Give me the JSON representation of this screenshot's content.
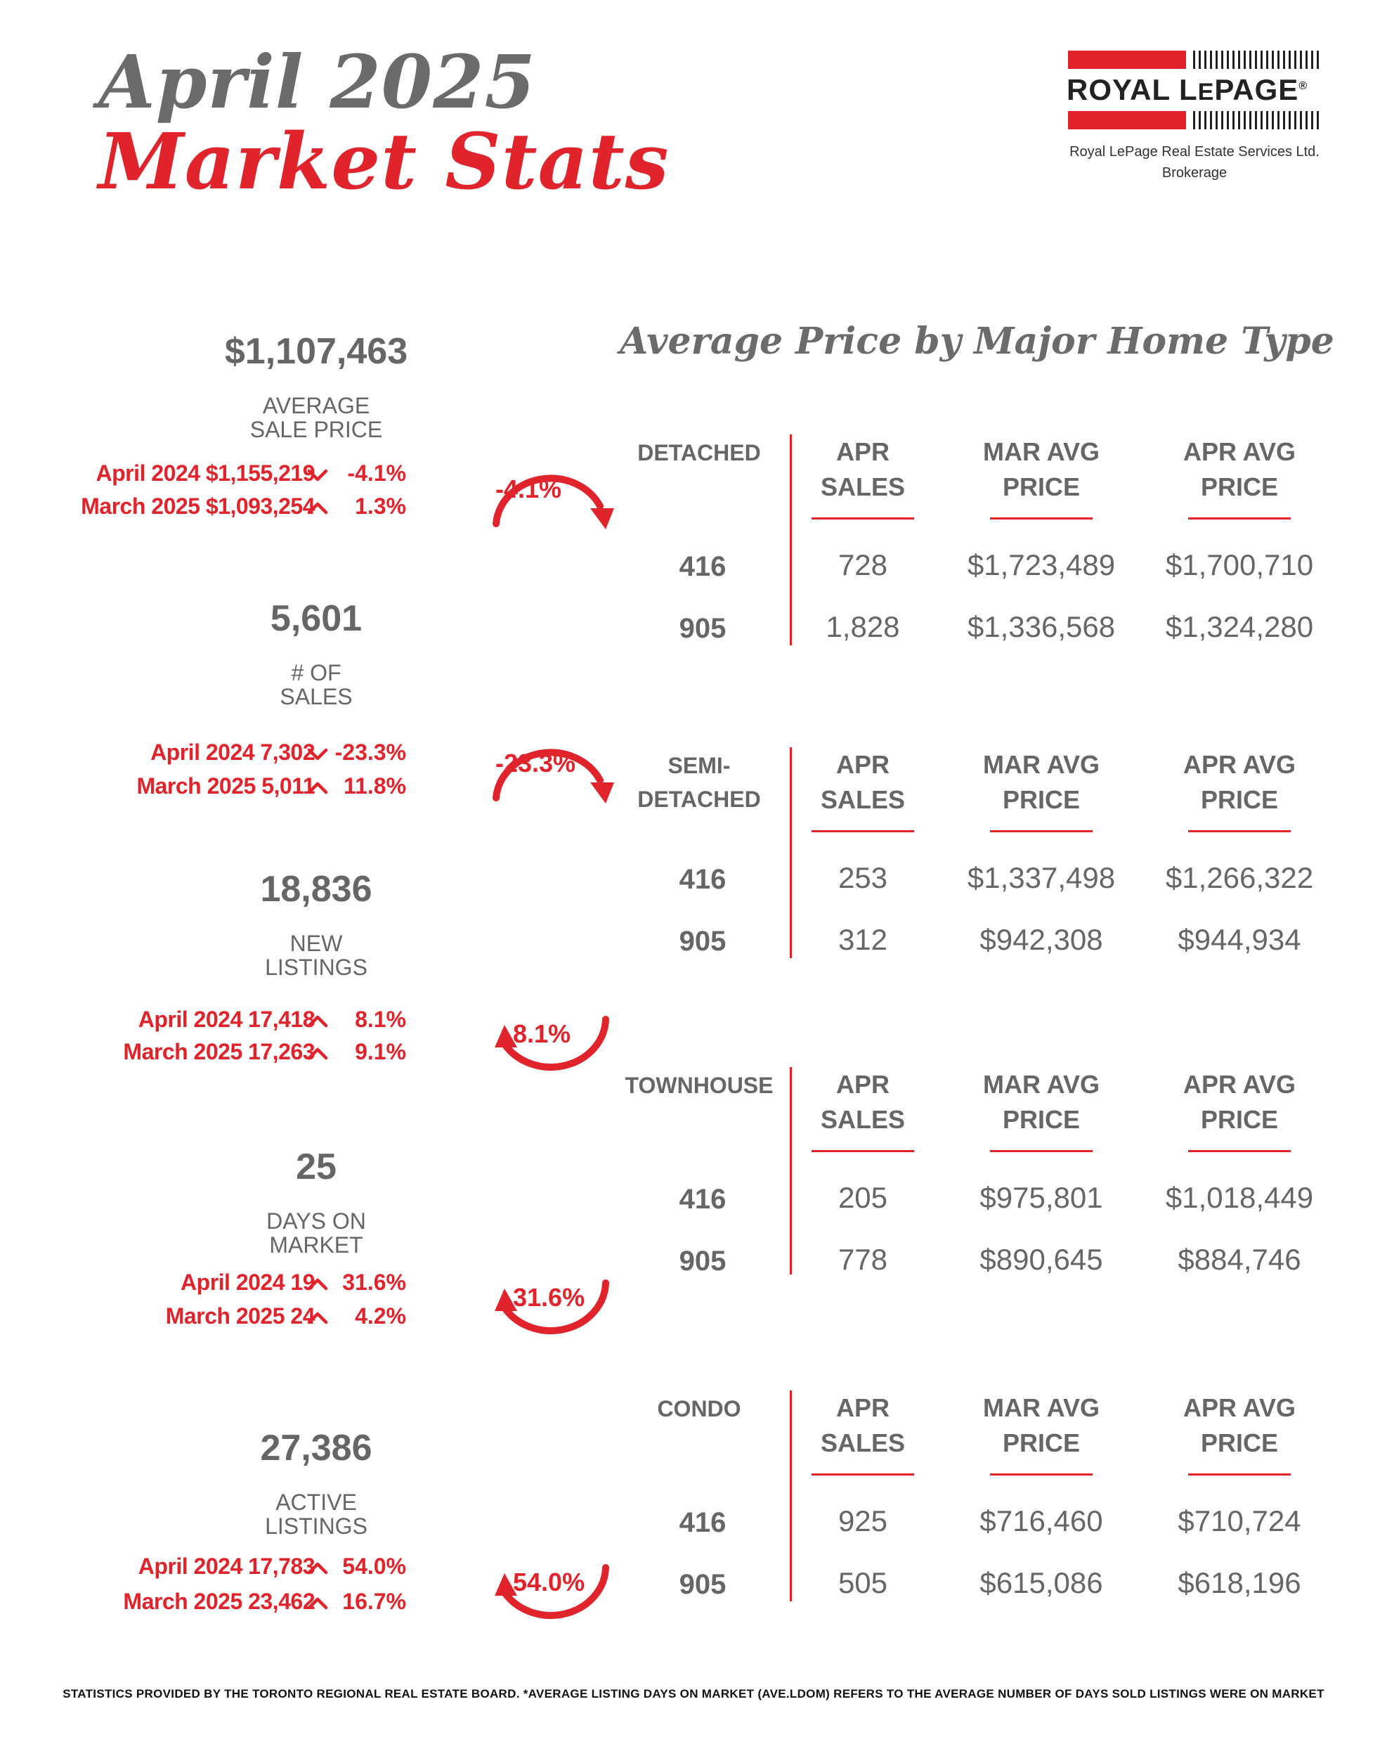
{
  "header": {
    "title_line1": "April 2025",
    "title_line2": "Market Stats"
  },
  "logo": {
    "brand_main": "ROYAL L",
    "brand_small_e": "E",
    "brand_end": "PAGE",
    "registered": "®",
    "company": "Royal LePage Real Estate Services Ltd.",
    "type": "Brokerage"
  },
  "stats": [
    {
      "value": "$1,107,463",
      "label_line1": "AVERAGE",
      "label_line2": "SALE PRICE",
      "comparisons": [
        {
          "text": "April 2024  $1,155,219",
          "direction": "down",
          "pct": "-4.1%"
        },
        {
          "text": "March 2025  $1,093,254",
          "direction": "up",
          "pct": "1.3%"
        }
      ],
      "circle": {
        "pct": "-4.1%",
        "direction": "down"
      }
    },
    {
      "value": "5,601",
      "label_line1": "# OF",
      "label_line2": "SALES",
      "comparisons": [
        {
          "text": "April 2024  7,302",
          "direction": "down",
          "pct": "-23.3%"
        },
        {
          "text": "March 2025  5,011",
          "direction": "up",
          "pct": "11.8%"
        }
      ],
      "circle": {
        "pct": "-23.3%",
        "direction": "down"
      }
    },
    {
      "value": "18,836",
      "label_line1": "NEW",
      "label_line2": "LISTINGS",
      "comparisons": [
        {
          "text": "April 2024  17,418",
          "direction": "up",
          "pct": "8.1%"
        },
        {
          "text": "March 2025  17,263",
          "direction": "up",
          "pct": "9.1%"
        }
      ],
      "circle": {
        "pct": "8.1%",
        "direction": "up"
      }
    },
    {
      "value": "25",
      "label_line1": "DAYS ON",
      "label_line2": "MARKET",
      "comparisons": [
        {
          "text": "April 2024  19",
          "direction": "up",
          "pct": "31.6%"
        },
        {
          "text": "March 2025  24",
          "direction": "up",
          "pct": "4.2%"
        }
      ],
      "circle": {
        "pct": "31.6%",
        "direction": "up"
      }
    },
    {
      "value": "27,386",
      "label_line1": "ACTIVE",
      "label_line2": "LISTINGS",
      "comparisons": [
        {
          "text": "April 2024 17,783",
          "direction": "up",
          "pct": "54.0%"
        },
        {
          "text": "March 2025  23,462",
          "direction": "up",
          "pct": "16.7%"
        }
      ],
      "circle": {
        "pct": "54.0%",
        "direction": "up"
      }
    }
  ],
  "price_section": {
    "title": "Average Price by Major Home Type",
    "columns": {
      "sales": [
        "APR",
        "SALES"
      ],
      "mar": [
        "MAR AVG",
        "PRICE"
      ],
      "apr": [
        "APR AVG",
        "PRICE"
      ]
    },
    "types": [
      {
        "label_lines": [
          "DETACHED"
        ],
        "rows": [
          {
            "code": "416",
            "sales": "728",
            "mar": "$1,723,489",
            "apr": "$1,700,710"
          },
          {
            "code": "905",
            "sales": "1,828",
            "mar": "$1,336,568",
            "apr": "$1,324,280"
          }
        ]
      },
      {
        "label_lines": [
          "SEMI-",
          "DETACHED"
        ],
        "rows": [
          {
            "code": "416",
            "sales": "253",
            "mar": "$1,337,498",
            "apr": "$1,266,322"
          },
          {
            "code": "905",
            "sales": "312",
            "mar": "$942,308",
            "apr": "$944,934"
          }
        ]
      },
      {
        "label_lines": [
          "TOWNHOUSE"
        ],
        "rows": [
          {
            "code": "416",
            "sales": "205",
            "mar": "$975,801",
            "apr": "$1,018,449"
          },
          {
            "code": "905",
            "sales": "778",
            "mar": "$890,645",
            "apr": "$884,746"
          }
        ]
      },
      {
        "label_lines": [
          "CONDO"
        ],
        "rows": [
          {
            "code": "416",
            "sales": "925",
            "mar": "$716,460",
            "apr": "$710,724"
          },
          {
            "code": "905",
            "sales": "505",
            "mar": "$615,086",
            "apr": "$618,196"
          }
        ]
      }
    ]
  },
  "footer": "STATISTICS PROVIDED BY THE TORONTO REGIONAL REAL ESTATE BOARD. *AVERAGE LISTING DAYS ON MARKET (AVE.LDOM) REFERS TO THE AVERAGE NUMBER OF DAYS SOLD LISTINGS WERE ON MARKET",
  "colors": {
    "accent": "#e1232b",
    "text_gray": "#666666"
  }
}
